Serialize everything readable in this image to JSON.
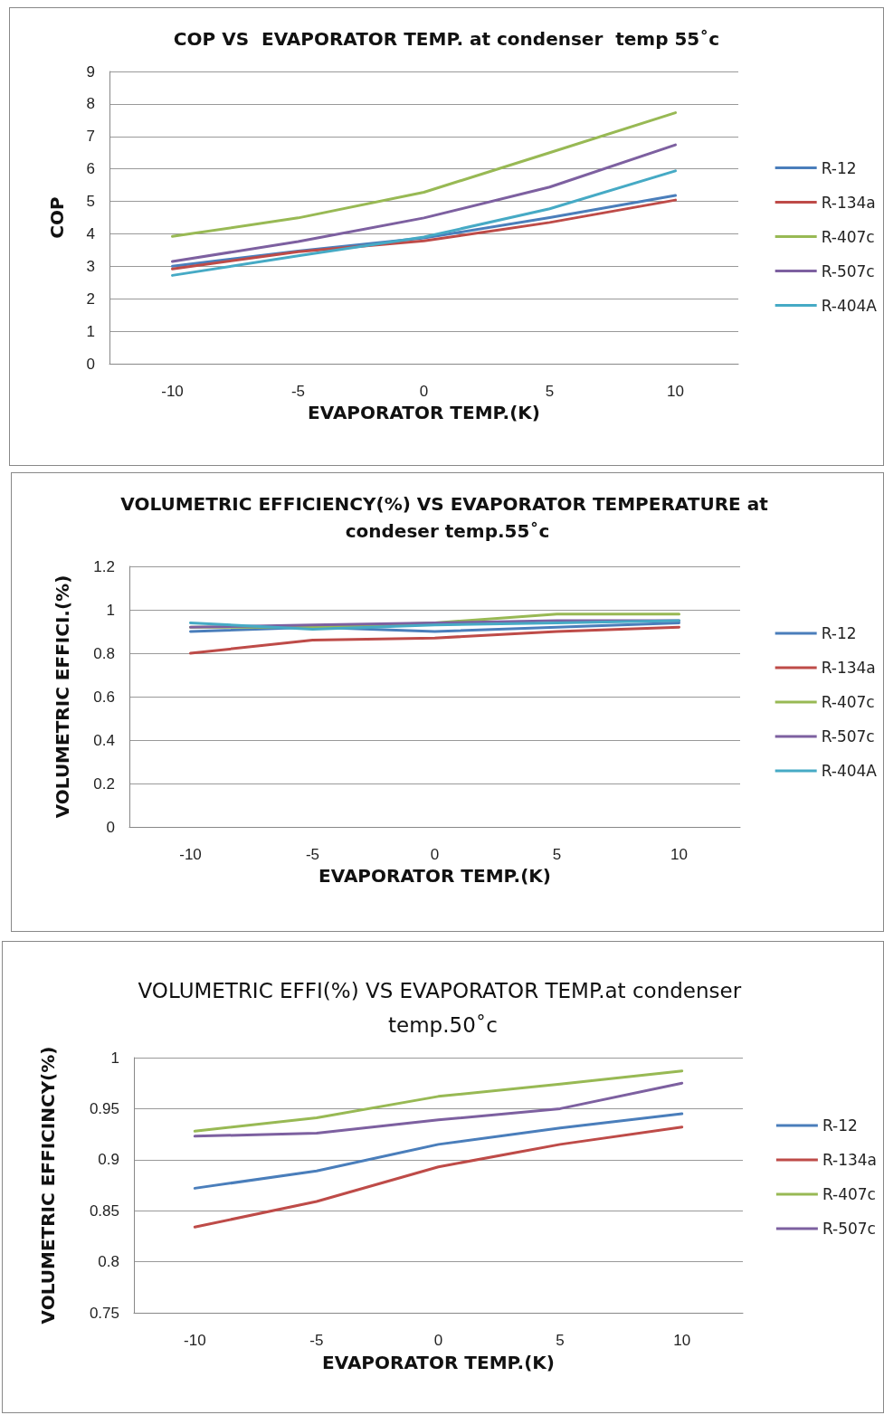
{
  "chart_data": [
    {
      "type": "line",
      "title": "COP VS  EVAPORATOR TEMP. at condenser  temp 55˚c",
      "xlabel": "EVAPORATOR TEMP.(K)",
      "ylabel": "COP",
      "categories": [
        "-10",
        "-5",
        "0",
        "5",
        "10"
      ],
      "ylim": [
        0,
        9
      ],
      "yticks": [
        0,
        1,
        2,
        3,
        4,
        5,
        6,
        7,
        8,
        9
      ],
      "grid": "y",
      "legend": "right",
      "marker": "none",
      "series": [
        {
          "name": "R-12",
          "color": "#4a7ebb",
          "values": [
            3.0,
            3.47,
            3.87,
            4.5,
            5.18
          ]
        },
        {
          "name": "R-134a",
          "color": "#be4b48",
          "values": [
            2.92,
            3.45,
            3.78,
            4.35,
            5.04
          ]
        },
        {
          "name": "R-407c",
          "color": "#98b954",
          "values": [
            3.92,
            4.49,
            5.28,
            6.5,
            7.73
          ]
        },
        {
          "name": "R-507c",
          "color": "#7d60a0",
          "values": [
            3.15,
            3.76,
            4.49,
            5.44,
            6.74
          ]
        },
        {
          "name": "R-404A",
          "color": "#46aac5",
          "values": [
            2.72,
            3.32,
            3.9,
            4.77,
            5.94
          ]
        }
      ]
    },
    {
      "type": "line",
      "title": "VOLUMETRIC EFFICIENCY(%) VS EVAPORATOR TEMPERATURE at condeser temp.55˚c",
      "xlabel": "EVAPORATOR TEMP.(K)",
      "ylabel": "VOLUMETRIC EFFICI.(%)",
      "categories": [
        "-10",
        "-5",
        "0",
        "5",
        "10"
      ],
      "ylim": [
        0,
        1.2
      ],
      "yticks": [
        0,
        0.2,
        0.4,
        0.6,
        0.8,
        1,
        1.2
      ],
      "grid": "y",
      "legend": "right",
      "marker": "none",
      "series": [
        {
          "name": "R-12",
          "color": "#4a7ebb",
          "values": [
            0.9,
            0.92,
            0.9,
            0.92,
            0.94
          ]
        },
        {
          "name": "R-134a",
          "color": "#be4b48",
          "values": [
            0.8,
            0.86,
            0.87,
            0.9,
            0.92
          ]
        },
        {
          "name": "R-407c",
          "color": "#98b954",
          "values": [
            0.92,
            0.92,
            0.94,
            0.98,
            0.98
          ]
        },
        {
          "name": "R-507c",
          "color": "#7d60a0",
          "values": [
            0.92,
            0.93,
            0.94,
            0.95,
            0.95
          ]
        },
        {
          "name": "R-404A",
          "color": "#46aac5",
          "values": [
            0.94,
            0.91,
            0.93,
            0.94,
            0.95
          ]
        }
      ]
    },
    {
      "type": "line",
      "title": "VOLUMETRIC EFFI(%) VS EVAPORATOR TEMP.at condenser temp.50˚c",
      "xlabel": "EVAPORATOR TEMP.(K)",
      "ylabel": "VOLUMETRIC EFFICINCY(%)",
      "categories": [
        "-10",
        "-5",
        "0",
        "5",
        "10"
      ],
      "ylim": [
        0.75,
        1
      ],
      "yticks": [
        0.75,
        0.8,
        0.85,
        0.9,
        0.95,
        1
      ],
      "grid": "y",
      "legend": "right",
      "marker": "none",
      "series": [
        {
          "name": "R-12",
          "color": "#4a7ebb",
          "values": [
            0.872,
            0.889,
            0.915,
            0.931,
            0.945
          ]
        },
        {
          "name": "R-134a",
          "color": "#be4b48",
          "values": [
            0.834,
            0.859,
            0.893,
            0.915,
            0.932
          ]
        },
        {
          "name": "R-407c",
          "color": "#98b954",
          "values": [
            0.928,
            0.941,
            0.962,
            0.974,
            0.987
          ]
        },
        {
          "name": "R-507c",
          "color": "#7d60a0",
          "values": [
            0.923,
            0.926,
            0.939,
            0.95,
            0.975
          ]
        }
      ]
    }
  ]
}
